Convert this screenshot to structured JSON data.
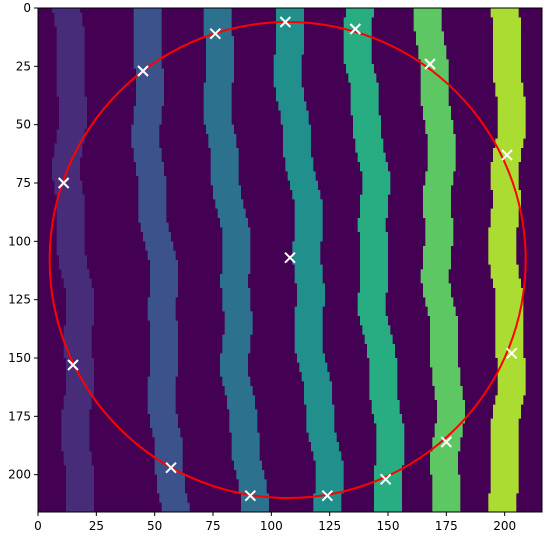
{
  "chart_data": {
    "type": "heatmap",
    "title": "",
    "xlabel": "",
    "ylabel": "",
    "xlim": [
      0,
      216
    ],
    "ylim": [
      216,
      0
    ],
    "x_ticks": [
      0,
      25,
      50,
      75,
      100,
      125,
      150,
      175,
      200
    ],
    "y_ticks": [
      0,
      25,
      50,
      75,
      100,
      125,
      150,
      175,
      200
    ],
    "colormap": "viridis",
    "background_color": "#440154",
    "grid": false,
    "legend": "none",
    "stripes": [
      {
        "color": "#472c7a",
        "top_x": 6,
        "bottom_x": 13,
        "width": 12
      },
      {
        "color": "#3b528b",
        "top_x": 39,
        "bottom_x": 52,
        "width": 12
      },
      {
        "color": "#2c718e",
        "top_x": 70,
        "bottom_x": 85,
        "width": 12
      },
      {
        "color": "#21908c",
        "top_x": 101,
        "bottom_x": 118,
        "width": 12
      },
      {
        "color": "#27ad81",
        "top_x": 132,
        "bottom_x": 145,
        "width": 12
      },
      {
        "color": "#5dc863",
        "top_x": 163,
        "bottom_x": 170,
        "width": 12
      },
      {
        "color": "#aadc32",
        "top_x": 195,
        "bottom_x": 195,
        "width": 12
      }
    ],
    "circle": {
      "center_x": 107,
      "center_y": 108,
      "radius": 102,
      "color": "#ff0000"
    },
    "markers": {
      "symbol": "x",
      "color": "#ffffff",
      "points": [
        {
          "x": 106,
          "y": 6
        },
        {
          "x": 136,
          "y": 9
        },
        {
          "x": 76,
          "y": 11
        },
        {
          "x": 45,
          "y": 27
        },
        {
          "x": 168,
          "y": 24
        },
        {
          "x": 201,
          "y": 63
        },
        {
          "x": 11,
          "y": 75
        },
        {
          "x": 108,
          "y": 107
        },
        {
          "x": 15,
          "y": 153
        },
        {
          "x": 203,
          "y": 148
        },
        {
          "x": 175,
          "y": 186
        },
        {
          "x": 57,
          "y": 197
        },
        {
          "x": 149,
          "y": 202
        },
        {
          "x": 91,
          "y": 209
        },
        {
          "x": 124,
          "y": 209
        }
      ]
    }
  }
}
